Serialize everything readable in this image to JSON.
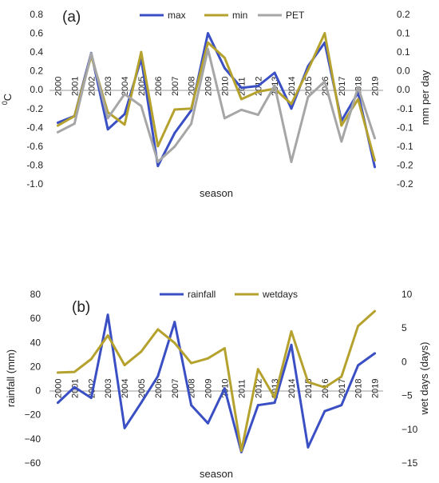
{
  "chart_data": [
    {
      "type": "line",
      "panel_label": "(a)",
      "xlabel": "season",
      "ylabel": "0C",
      "y2label": "mm per day",
      "ylim": [
        -1.0,
        0.8
      ],
      "y2lim": [
        -0.2,
        0.2
      ],
      "yticks": [
        "0.8",
        "0.6",
        "0.4",
        "0.2",
        "0.0",
        "-0.2",
        "-0.4",
        "-0.6",
        "-0.8",
        "-1.0"
      ],
      "y2ticks": [
        "0.2",
        "0.1",
        "0.1",
        "0.0",
        "0.0",
        "-0.1",
        "-0.1",
        "-0.1",
        "-0.2",
        "-0.2"
      ],
      "legend_position": "top",
      "categories": [
        "2000",
        "2001",
        "2002",
        "2003",
        "2004",
        "2005",
        "2006",
        "2007",
        "2008",
        "2009",
        "2010",
        "2011",
        "2012",
        "2013",
        "2014",
        "2015",
        "2016",
        "2017",
        "2018",
        "2019"
      ],
      "series": [
        {
          "name": "max",
          "axis": "left",
          "color": "#3b4fc4",
          "values": [
            -0.35,
            -0.28,
            0.39,
            -0.42,
            -0.26,
            0.33,
            -0.81,
            -0.46,
            -0.22,
            0.6,
            0.23,
            0.02,
            0.04,
            0.18,
            -0.2,
            0.25,
            0.5,
            -0.33,
            -0.03,
            -0.82
          ]
        },
        {
          "name": "min",
          "axis": "left",
          "color": "#b5a22e",
          "values": [
            -0.38,
            -0.28,
            0.36,
            -0.24,
            -0.37,
            0.4,
            -0.6,
            -0.21,
            -0.2,
            0.5,
            0.34,
            -0.1,
            -0.02,
            0.01,
            -0.15,
            0.21,
            0.6,
            -0.38,
            -0.1,
            -0.75
          ]
        },
        {
          "name": "PET",
          "axis": "right",
          "color": "#a6a6a6",
          "values": [
            -0.078,
            -0.058,
            0.108,
            -0.045,
            0.012,
            -0.016,
            -0.148,
            -0.112,
            -0.058,
            0.118,
            -0.045,
            -0.025,
            -0.037,
            0.032,
            -0.148,
            0.005,
            0.042,
            -0.1,
            0.028,
            -0.092
          ]
        }
      ]
    },
    {
      "type": "line",
      "panel_label": "(b)",
      "xlabel": "season",
      "ylabel": "rainfall (mm)",
      "y2label": "wet days (days)",
      "ylim": [
        -60,
        80
      ],
      "y2lim": [
        -15,
        10
      ],
      "yticks": [
        "80",
        "60",
        "40",
        "20",
        "0",
        "−20",
        "−40",
        "−60"
      ],
      "y2ticks": [
        "10",
        "5",
        "0",
        "−5",
        "−10",
        "−15"
      ],
      "legend_position": "top",
      "categories": [
        "2000",
        "2001",
        "2002",
        "2003",
        "2004",
        "2005",
        "2006",
        "2007",
        "2008",
        "2009",
        "2010",
        "2011",
        "2012",
        "2013",
        "2014",
        "2015",
        "2016",
        "2017",
        "2018",
        "2019"
      ],
      "series": [
        {
          "name": "rainfall",
          "axis": "left",
          "color": "#3b4fc4",
          "values": [
            -10,
            3,
            -6,
            63,
            -31,
            -10,
            12,
            57,
            -12,
            -27,
            2,
            -51,
            -12,
            -10,
            38,
            -47,
            -17,
            -12,
            21,
            31
          ]
        },
        {
          "name": "wetdays",
          "axis": "right",
          "color": "#b5a22e",
          "values": [
            -1.6,
            -1.5,
            0.4,
            3.9,
            -0.5,
            1.5,
            4.8,
            2.8,
            -0.2,
            0.5,
            2.0,
            -13.2,
            -1.1,
            -5.3,
            4.5,
            -3.0,
            -3.8,
            -2.2,
            5.3,
            7.5
          ]
        }
      ]
    }
  ]
}
